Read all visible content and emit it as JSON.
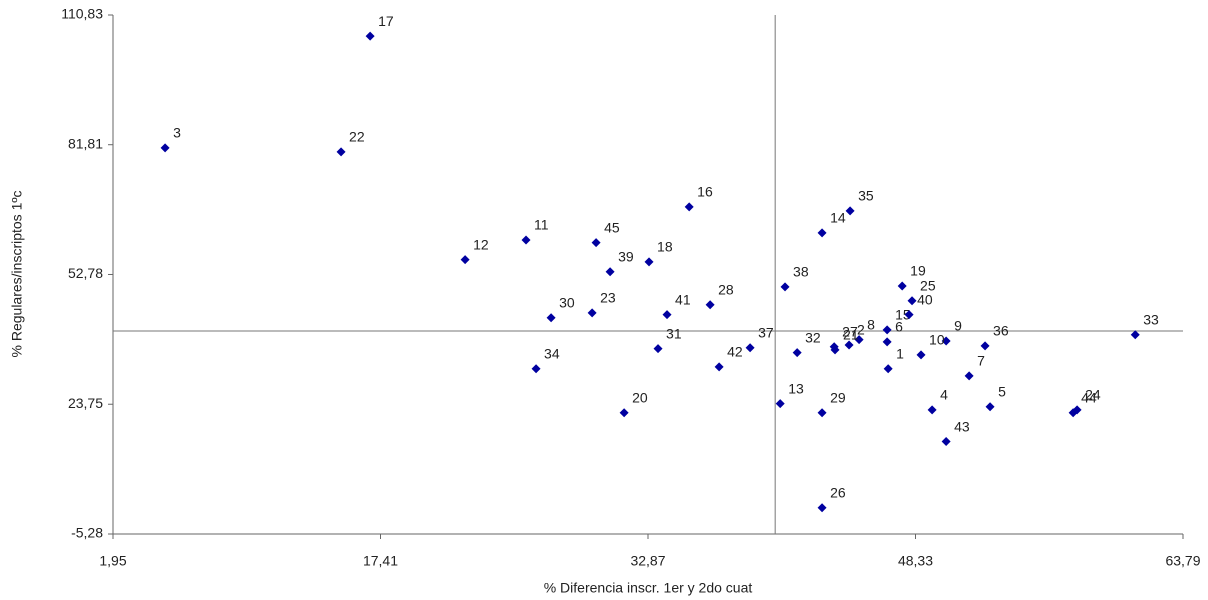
{
  "chart_data": {
    "type": "scatter",
    "x_label": "% Diferencia inscr. 1er y 2do cuat",
    "y_label": "% Regulares/inscriptos 1ºc",
    "xlim": [
      1.95,
      63.79
    ],
    "ylim": [
      -5.28,
      110.83
    ],
    "xticks": [
      {
        "value": 1.95,
        "label": "1,95"
      },
      {
        "value": 17.41,
        "label": "17,41"
      },
      {
        "value": 32.87,
        "label": "32,87"
      },
      {
        "value": 48.33,
        "label": "48,33"
      },
      {
        "value": 63.79,
        "label": "63,79"
      }
    ],
    "yticks": [
      {
        "value": -5.28,
        "label": "-5,28"
      },
      {
        "value": 23.75,
        "label": "23,75"
      },
      {
        "value": 52.78,
        "label": "52,78"
      },
      {
        "value": 81.81,
        "label": "81,81"
      },
      {
        "value": 110.83,
        "label": "110,83"
      }
    ],
    "reference_x": 40.22,
    "reference_y": 40.13,
    "series": [
      {
        "color": "#0000a0",
        "labels": [
          "1",
          "2",
          "3",
          "4",
          "5",
          "6",
          "7",
          "8",
          "9",
          "10",
          "11",
          "12",
          "13",
          "14",
          "15",
          "16",
          "17",
          "18",
          "19",
          "20",
          "21",
          "22",
          "23",
          "24",
          "25",
          "26",
          "27",
          "28",
          "29",
          "30",
          "31",
          "32",
          "33",
          "34",
          "35",
          "36",
          "37",
          "38",
          "39",
          "40",
          "41",
          "42",
          "43",
          "44",
          "45"
        ],
        "x": [
          46.75,
          44.49,
          4.96,
          49.29,
          52.64,
          46.69,
          51.43,
          45.07,
          50.1,
          48.65,
          25.82,
          22.3,
          40.51,
          42.93,
          46.69,
          35.25,
          16.81,
          32.93,
          47.56,
          31.49,
          43.68,
          15.13,
          29.64,
          57.67,
          48.13,
          42.93,
          43.63,
          36.46,
          42.93,
          27.27,
          33.45,
          41.49,
          61.03,
          26.4,
          44.55,
          52.35,
          38.77,
          40.79,
          30.68,
          47.96,
          33.97,
          36.98,
          50.1,
          57.44,
          29.87
        ],
        "values": [
          31.7,
          37.0,
          81.1,
          22.5,
          23.2,
          37.7,
          30.1,
          38.2,
          37.9,
          34.8,
          60.5,
          56.1,
          23.9,
          62.1,
          40.4,
          67.9,
          106.1,
          55.6,
          50.2,
          21.85,
          35.9,
          80.2,
          44.2,
          22.5,
          46.9,
          0.6,
          36.6,
          46.0,
          21.85,
          43.1,
          36.2,
          35.3,
          39.3,
          31.7,
          67.0,
          36.8,
          36.4,
          50.0,
          53.4,
          43.8,
          43.8,
          32.1,
          15.4,
          21.85,
          59.9
        ]
      }
    ]
  }
}
